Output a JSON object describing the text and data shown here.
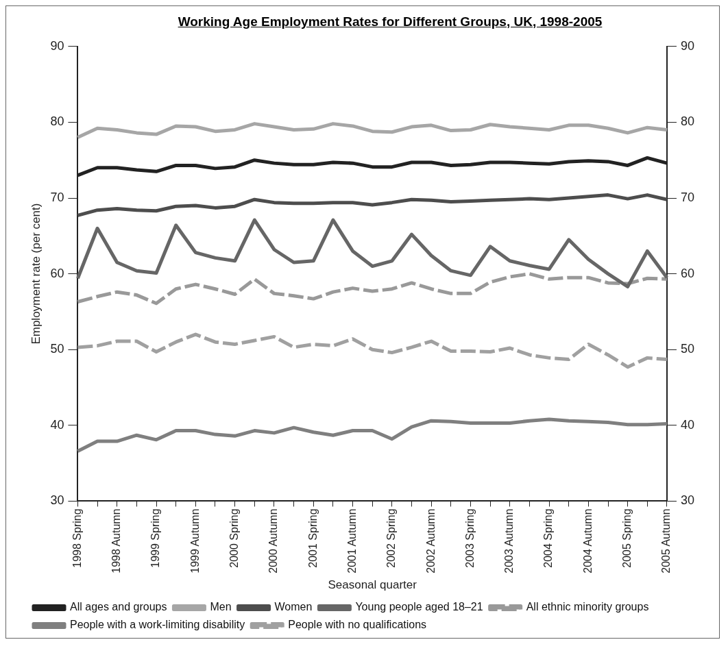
{
  "chart_data": {
    "type": "line",
    "title": "Working Age Employment Rates for Different Groups, UK, 1998-2005",
    "xlabel": "Seasonal quarter",
    "ylabel": "Employment rate (per cent)",
    "categories": [
      "1998 Spring",
      null,
      "1998 Autumn",
      null,
      "1999 Spring",
      null,
      "1999 Autumn",
      null,
      "2000 Spring",
      null,
      "2000 Autumn",
      null,
      "2001 Spring",
      null,
      "2001 Autumn",
      null,
      "2002 Spring",
      null,
      "2002 Autumn",
      null,
      "2003 Spring",
      null,
      "2003 Autumn",
      null,
      "2004 Spring",
      null,
      "2004 Autumn",
      null,
      "2005 Spring",
      null,
      "2005 Autumn"
    ],
    "series": [
      {
        "name": "All ages and groups",
        "color": "#222222",
        "values": [
          73,
          74,
          74,
          73.7,
          73.5,
          74.3,
          74.3,
          73.9,
          74.1,
          75,
          74.6,
          74.4,
          74.4,
          74.7,
          74.6,
          74.1,
          74.1,
          74.7,
          74.7,
          74.3,
          74.4,
          74.7,
          74.7,
          74.6,
          74.5,
          74.8,
          74.9,
          74.8,
          74.3,
          75.3,
          74.6
        ]
      },
      {
        "name": "Men",
        "color": "#a6a6a6",
        "values": [
          78,
          79.2,
          79,
          78.6,
          78.4,
          79.5,
          79.4,
          78.8,
          79,
          79.8,
          79.4,
          79,
          79.1,
          79.8,
          79.5,
          78.8,
          78.7,
          79.4,
          79.6,
          78.9,
          79,
          79.7,
          79.4,
          79.2,
          79,
          79.6,
          79.6,
          79.2,
          78.6,
          79.3,
          79
        ]
      },
      {
        "name": "Women",
        "color": "#4d4d4d",
        "values": [
          67.7,
          68.4,
          68.6,
          68.4,
          68.3,
          68.9,
          69,
          68.7,
          68.9,
          69.8,
          69.4,
          69.3,
          69.3,
          69.4,
          69.4,
          69.1,
          69.4,
          69.8,
          69.7,
          69.5,
          69.6,
          69.7,
          69.8,
          69.9,
          69.8,
          70,
          70.2,
          70.4,
          69.9,
          70.4,
          69.8
        ]
      },
      {
        "name": "Young people aged 18–21",
        "color": "#666666",
        "values": [
          59.4,
          66,
          61.5,
          60.4,
          60.1,
          66.4,
          62.8,
          62.1,
          61.7,
          67.1,
          63.2,
          61.5,
          61.7,
          67.1,
          63,
          61,
          61.7,
          65.2,
          62.4,
          60.4,
          59.8,
          63.6,
          61.7,
          61.1,
          60.6,
          64.5,
          61.9,
          60,
          58.3,
          63,
          59.5
        ]
      },
      {
        "name": "All ethnic minority groups",
        "color": "#999999",
        "line_style": "dashed",
        "values": [
          56.3,
          57,
          57.6,
          57.2,
          56.1,
          58,
          58.6,
          58,
          57.3,
          59.3,
          57.4,
          57.1,
          56.7,
          57.6,
          58.1,
          57.7,
          58,
          58.8,
          58,
          57.4,
          57.4,
          58.9,
          59.6,
          60,
          59.3,
          59.5,
          59.5,
          58.8,
          58.7,
          59.4,
          59.3
        ]
      },
      {
        "name": "People with a work-limiting disability",
        "color": "#7f7f7f",
        "values": [
          36.6,
          37.9,
          37.9,
          38.7,
          38.1,
          39.3,
          39.3,
          38.8,
          38.6,
          39.3,
          39,
          39.7,
          39.1,
          38.7,
          39.3,
          39.3,
          38.2,
          39.8,
          40.6,
          40.5,
          40.3,
          40.3,
          40.3,
          40.6,
          40.8,
          40.6,
          40.5,
          40.4,
          40.1,
          40.1,
          40.2
        ]
      },
      {
        "name": "People with no qualifications",
        "color": "#a0a0a0",
        "line_style": "dashed",
        "values": [
          50.3,
          50.5,
          51.1,
          51.1,
          49.7,
          51,
          52,
          51,
          50.7,
          51.2,
          51.7,
          50.3,
          50.7,
          50.5,
          51.4,
          50,
          49.6,
          50.3,
          51.1,
          49.8,
          49.8,
          49.7,
          50.2,
          49.3,
          48.9,
          48.7,
          50.7,
          49.3,
          47.7,
          48.9,
          48.7
        ]
      }
    ],
    "ylim": [
      30,
      90
    ],
    "yticks": [
      30,
      40,
      50,
      60,
      70,
      80,
      90
    ],
    "y2lim": [
      30,
      90
    ],
    "y2ticks": [
      30,
      40,
      50,
      60,
      70,
      80,
      90
    ],
    "grid": false,
    "legend": "bottom",
    "marker": "none"
  }
}
